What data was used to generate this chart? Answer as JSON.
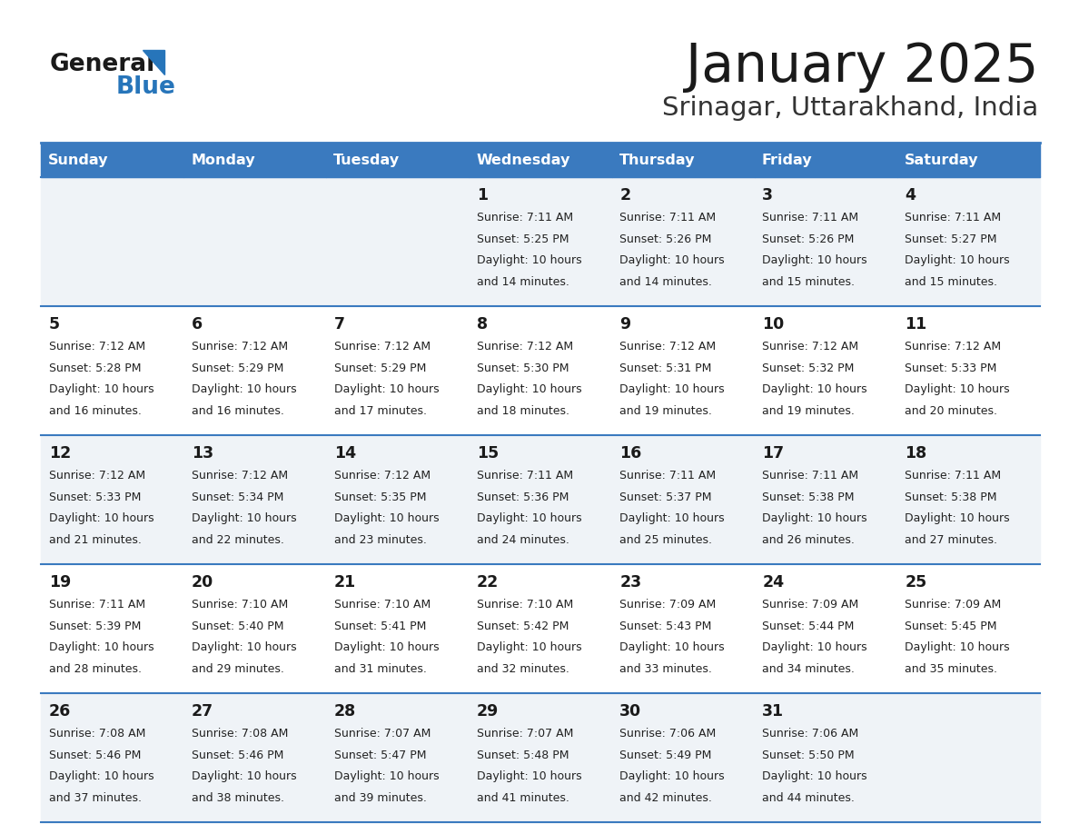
{
  "title": "January 2025",
  "subtitle": "Srinagar, Uttarakhand, India",
  "days_of_week": [
    "Sunday",
    "Monday",
    "Tuesday",
    "Wednesday",
    "Thursday",
    "Friday",
    "Saturday"
  ],
  "header_bg": "#3a7abf",
  "header_text": "#ffffff",
  "row_bg_odd": "#eff3f7",
  "row_bg_even": "#ffffff",
  "separator_color": "#3a7abf",
  "title_color": "#1a1a1a",
  "subtitle_color": "#333333",
  "cell_text_color": "#222222",
  "day_number_color": "#1a1a1a",
  "logo_general_color": "#1a1a1a",
  "logo_blue_color": "#2775ba",
  "logo_triangle_color": "#2775ba",
  "calendar_data": [
    [
      null,
      null,
      null,
      {
        "day": 1,
        "sunrise": "7:11 AM",
        "sunset": "5:25 PM",
        "daylight": "10 hours and 14 minutes."
      },
      {
        "day": 2,
        "sunrise": "7:11 AM",
        "sunset": "5:26 PM",
        "daylight": "10 hours and 14 minutes."
      },
      {
        "day": 3,
        "sunrise": "7:11 AM",
        "sunset": "5:26 PM",
        "daylight": "10 hours and 15 minutes."
      },
      {
        "day": 4,
        "sunrise": "7:11 AM",
        "sunset": "5:27 PM",
        "daylight": "10 hours and 15 minutes."
      }
    ],
    [
      {
        "day": 5,
        "sunrise": "7:12 AM",
        "sunset": "5:28 PM",
        "daylight": "10 hours and 16 minutes."
      },
      {
        "day": 6,
        "sunrise": "7:12 AM",
        "sunset": "5:29 PM",
        "daylight": "10 hours and 16 minutes."
      },
      {
        "day": 7,
        "sunrise": "7:12 AM",
        "sunset": "5:29 PM",
        "daylight": "10 hours and 17 minutes."
      },
      {
        "day": 8,
        "sunrise": "7:12 AM",
        "sunset": "5:30 PM",
        "daylight": "10 hours and 18 minutes."
      },
      {
        "day": 9,
        "sunrise": "7:12 AM",
        "sunset": "5:31 PM",
        "daylight": "10 hours and 19 minutes."
      },
      {
        "day": 10,
        "sunrise": "7:12 AM",
        "sunset": "5:32 PM",
        "daylight": "10 hours and 19 minutes."
      },
      {
        "day": 11,
        "sunrise": "7:12 AM",
        "sunset": "5:33 PM",
        "daylight": "10 hours and 20 minutes."
      }
    ],
    [
      {
        "day": 12,
        "sunrise": "7:12 AM",
        "sunset": "5:33 PM",
        "daylight": "10 hours and 21 minutes."
      },
      {
        "day": 13,
        "sunrise": "7:12 AM",
        "sunset": "5:34 PM",
        "daylight": "10 hours and 22 minutes."
      },
      {
        "day": 14,
        "sunrise": "7:12 AM",
        "sunset": "5:35 PM",
        "daylight": "10 hours and 23 minutes."
      },
      {
        "day": 15,
        "sunrise": "7:11 AM",
        "sunset": "5:36 PM",
        "daylight": "10 hours and 24 minutes."
      },
      {
        "day": 16,
        "sunrise": "7:11 AM",
        "sunset": "5:37 PM",
        "daylight": "10 hours and 25 minutes."
      },
      {
        "day": 17,
        "sunrise": "7:11 AM",
        "sunset": "5:38 PM",
        "daylight": "10 hours and 26 minutes."
      },
      {
        "day": 18,
        "sunrise": "7:11 AM",
        "sunset": "5:38 PM",
        "daylight": "10 hours and 27 minutes."
      }
    ],
    [
      {
        "day": 19,
        "sunrise": "7:11 AM",
        "sunset": "5:39 PM",
        "daylight": "10 hours and 28 minutes."
      },
      {
        "day": 20,
        "sunrise": "7:10 AM",
        "sunset": "5:40 PM",
        "daylight": "10 hours and 29 minutes."
      },
      {
        "day": 21,
        "sunrise": "7:10 AM",
        "sunset": "5:41 PM",
        "daylight": "10 hours and 31 minutes."
      },
      {
        "day": 22,
        "sunrise": "7:10 AM",
        "sunset": "5:42 PM",
        "daylight": "10 hours and 32 minutes."
      },
      {
        "day": 23,
        "sunrise": "7:09 AM",
        "sunset": "5:43 PM",
        "daylight": "10 hours and 33 minutes."
      },
      {
        "day": 24,
        "sunrise": "7:09 AM",
        "sunset": "5:44 PM",
        "daylight": "10 hours and 34 minutes."
      },
      {
        "day": 25,
        "sunrise": "7:09 AM",
        "sunset": "5:45 PM",
        "daylight": "10 hours and 35 minutes."
      }
    ],
    [
      {
        "day": 26,
        "sunrise": "7:08 AM",
        "sunset": "5:46 PM",
        "daylight": "10 hours and 37 minutes."
      },
      {
        "day": 27,
        "sunrise": "7:08 AM",
        "sunset": "5:46 PM",
        "daylight": "10 hours and 38 minutes."
      },
      {
        "day": 28,
        "sunrise": "7:07 AM",
        "sunset": "5:47 PM",
        "daylight": "10 hours and 39 minutes."
      },
      {
        "day": 29,
        "sunrise": "7:07 AM",
        "sunset": "5:48 PM",
        "daylight": "10 hours and 41 minutes."
      },
      {
        "day": 30,
        "sunrise": "7:06 AM",
        "sunset": "5:49 PM",
        "daylight": "10 hours and 42 minutes."
      },
      {
        "day": 31,
        "sunrise": "7:06 AM",
        "sunset": "5:50 PM",
        "daylight": "10 hours and 44 minutes."
      },
      null
    ]
  ]
}
